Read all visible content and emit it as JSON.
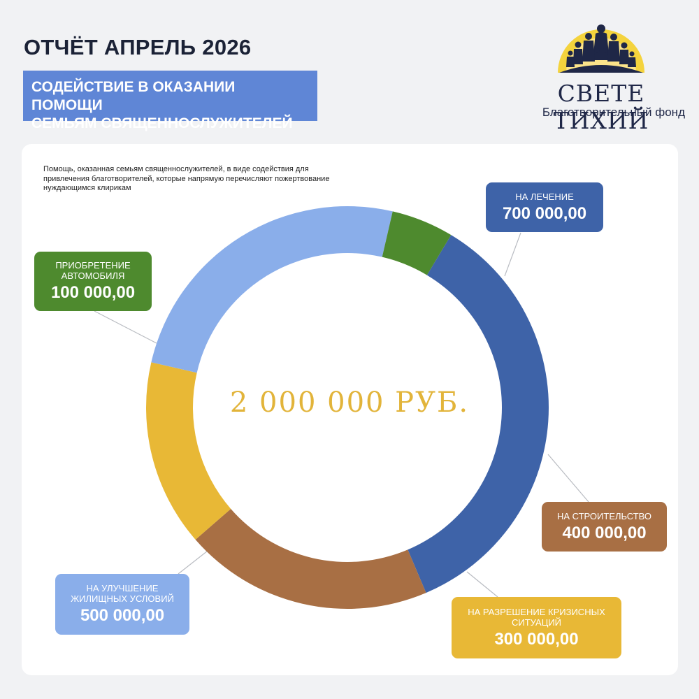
{
  "header": {
    "title": "ОТЧЁТ АПРЕЛЬ 2026",
    "subtitle_line1": "СОДЕЙСТВИЕ В ОКАЗАНИИ ПОМОЩИ",
    "subtitle_line2": "СЕМЬЯМ СВЯЩЕННОСЛУЖИТЕЛЕЙ"
  },
  "logo": {
    "name": "СВЕТЕ ТИХИЙ",
    "subtitle": "Благотворительный фонд",
    "icon": "sunrise-with-people-silhouette-icon"
  },
  "card": {
    "description": "Помощь, оказанная семьям священнослужителей, в виде содействия для привлечения благотворителей, которые напрямую перечисляют пожертвование нуждающимся клирикам"
  },
  "colors": {
    "subtitle_bg": "#5f86d6",
    "medical": "#3e63a8",
    "building": "#a86f44",
    "crisis": "#e8b836",
    "housing": "#8aaeea",
    "car": "#4e8a2e",
    "total_text": "#e2b43a"
  },
  "chart_data": {
    "type": "pie",
    "donut": true,
    "center_label": "2 000 000 РУБ.",
    "slices": [
      {
        "id": "medical",
        "label": "НА ЛЕЧЕНИЕ",
        "value": 700000,
        "value_label": "700 000,00",
        "color": "#3e63a8"
      },
      {
        "id": "building",
        "label": "НА СТРОИТЕЛЬСТВО",
        "value": 400000,
        "value_label": "400 000,00",
        "color": "#a86f44"
      },
      {
        "id": "crisis",
        "label": "НА РАЗРЕШЕНИЕ КРИЗИСНЫХ СИТУАЦИЙ",
        "value": 300000,
        "value_label": "300 000,00",
        "color": "#e8b836"
      },
      {
        "id": "housing",
        "label": "НА УЛУЧШЕНИЕ ЖИЛИЩНЫХ УСЛОВИЙ",
        "value": 500000,
        "value_label": "500 000,00",
        "color": "#8aaeea"
      },
      {
        "id": "car",
        "label": "ПРИОБРЕТЕНИЕ АВТОМОБИЛЯ",
        "value": 100000,
        "value_label": "100 000,00",
        "color": "#4e8a2e"
      }
    ]
  }
}
